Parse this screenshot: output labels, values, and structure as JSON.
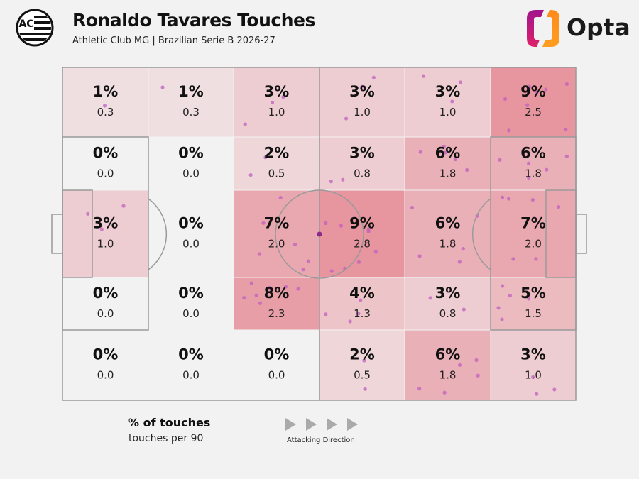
{
  "header": {
    "title": "Ronaldo Tavares Touches",
    "subtitle": "Athletic Club MG | Brazilian Serie B 2026-27",
    "club_logo_text": "AC",
    "brand": "Opta"
  },
  "legend": {
    "primary": "% of touches",
    "secondary": "touches per 90",
    "direction": "Attacking Direction"
  },
  "colors": {
    "background": "#f2f2f2",
    "heat": "#e05a69",
    "dot": "#c05fc0",
    "arrow": "#aaaaaa"
  },
  "chart_data": {
    "type": "heatmap",
    "title": "Ronaldo Tavares Touches",
    "grid": "6 columns x 5 rows zones, attacking left to right",
    "rows": [
      {
        "pct": [
          "1%",
          "1%",
          "3%",
          "3%",
          "3%",
          "9%"
        ],
        "per90": [
          "0.3",
          "0.3",
          "1.0",
          "1.0",
          "1.0",
          "2.5"
        ]
      },
      {
        "pct": [
          "0%",
          "0%",
          "2%",
          "3%",
          "6%",
          "6%"
        ],
        "per90": [
          "0.0",
          "0.0",
          "0.5",
          "0.8",
          "1.8",
          "1.8"
        ]
      },
      {
        "pct": [
          "3%",
          "0%",
          "7%",
          "9%",
          "6%",
          "7%"
        ],
        "per90": [
          "1.0",
          "0.0",
          "2.0",
          "2.8",
          "1.8",
          "2.0"
        ]
      },
      {
        "pct": [
          "0%",
          "0%",
          "8%",
          "4%",
          "3%",
          "5%"
        ],
        "per90": [
          "0.0",
          "0.0",
          "2.3",
          "1.3",
          "0.8",
          "1.5"
        ]
      },
      {
        "pct": [
          "0%",
          "0%",
          "0%",
          "2%",
          "6%",
          "3%"
        ],
        "per90": [
          "0.0",
          "0.0",
          "0.0",
          "0.5",
          "1.8",
          "1.0"
        ]
      }
    ]
  }
}
